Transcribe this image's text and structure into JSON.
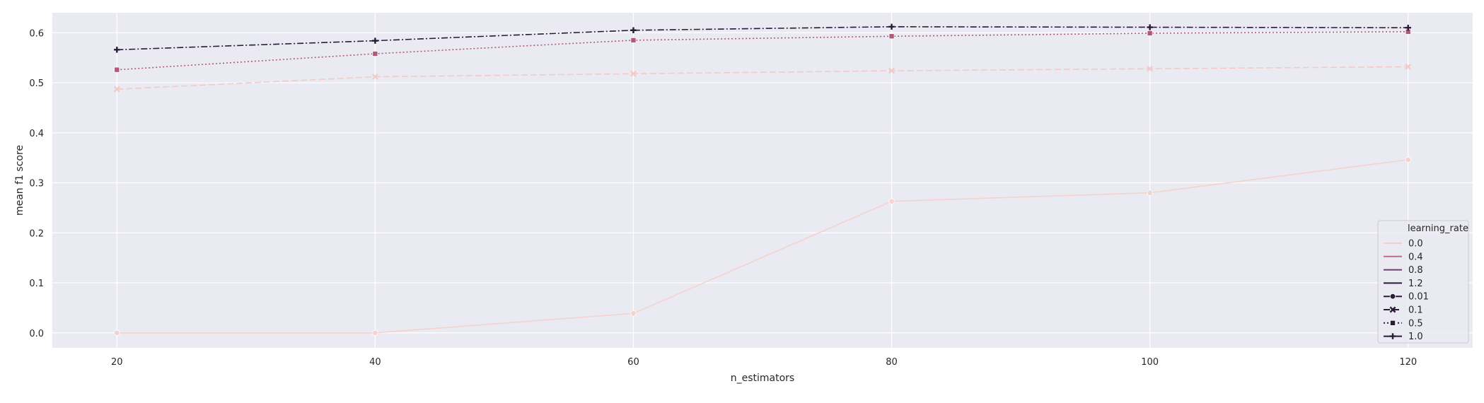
{
  "chart_data": {
    "type": "line",
    "title": "",
    "xlabel": "n_estimators",
    "ylabel": "mean f1 score",
    "x": [
      20,
      40,
      60,
      80,
      100,
      120
    ],
    "xticks": [
      "20",
      "40",
      "60",
      "80",
      "100",
      "120"
    ],
    "yticks": [
      "0.0",
      "0.1",
      "0.2",
      "0.3",
      "0.4",
      "0.5",
      "0.6"
    ],
    "xlim": [
      15,
      125
    ],
    "ylim": [
      -0.03,
      0.64
    ],
    "grid": true,
    "background": "#eaeaf2",
    "legend": {
      "placement": "lower-right",
      "title": "learning_rate",
      "hue_entries": [
        {
          "label": "0.0",
          "color": "#f4cfc8"
        },
        {
          "label": "0.4",
          "color": "#c06b83"
        },
        {
          "label": "0.8",
          "color": "#6e3f73"
        },
        {
          "label": "1.2",
          "color": "#2b1a38"
        }
      ],
      "style_entries": [
        {
          "label": "0.01",
          "dash": "solid",
          "marker": "circle"
        },
        {
          "label": "0.1",
          "dash": "dashed",
          "marker": "x"
        },
        {
          "label": "0.5",
          "dash": "dotted",
          "marker": "square"
        },
        {
          "label": "1.0",
          "dash": "dashdot",
          "marker": "plus"
        }
      ]
    },
    "series": [
      {
        "style": "0.01",
        "color": "#f4d3cd",
        "dash": "solid",
        "marker": "circle",
        "values": [
          0.0,
          0.0,
          0.039,
          0.263,
          0.28,
          0.346
        ]
      },
      {
        "style": "0.1",
        "color": "#f2cbc6",
        "dash": "dashed",
        "marker": "x",
        "values": [
          0.487,
          0.512,
          0.518,
          0.524,
          0.528,
          0.532
        ]
      },
      {
        "style": "0.5",
        "color": "#b05a7a",
        "dash": "dotted",
        "marker": "square",
        "values": [
          0.526,
          0.558,
          0.585,
          0.593,
          0.599,
          0.602
        ]
      },
      {
        "style": "1.0",
        "color": "#2b1a38",
        "dash": "dashdot",
        "marker": "plus",
        "values": [
          0.566,
          0.584,
          0.605,
          0.612,
          0.611,
          0.61
        ]
      }
    ]
  }
}
